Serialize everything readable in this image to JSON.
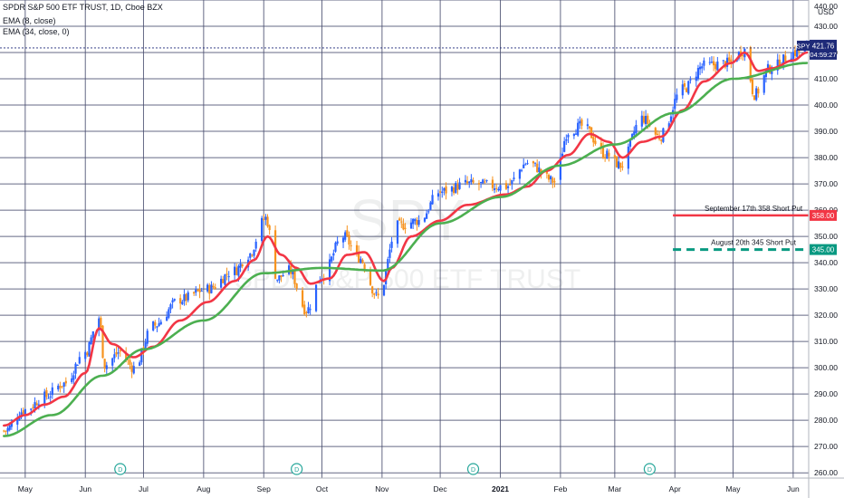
{
  "header": {
    "symbol_line": "SPDR S&P 500 ETF TRUST, 1D, Cboe BZX",
    "ema_fast_line": "EMA (8, close)",
    "ema_slow_line": "EMA (34, close, 0)"
  },
  "watermark": {
    "ticker": "SPY",
    "name": "SPDR S&P 500 ETF TRUST"
  },
  "axis": {
    "currency": "USD"
  },
  "price_tag": {
    "symbol": "SPY",
    "value": "421.76",
    "countdown": "04:59:27",
    "color": "#1e2a78"
  },
  "colors": {
    "up": "#2962ff",
    "down": "#f7931e",
    "ema_fast": "#f23645",
    "ema_slow": "#4caf50",
    "grid": "#4a4f70",
    "dividend_marker": "#26a69a"
  },
  "annotations": [
    {
      "label": "September 17th 358 Short Put",
      "price": 358,
      "tag": "358.00",
      "color": "#f23645",
      "style": "solid"
    },
    {
      "label": "August 20th 345 Short Put",
      "price": 345,
      "tag": "345.00",
      "color": "#089981",
      "style": "dashed"
    }
  ],
  "dividend_markers": [
    {
      "label": "D",
      "date": "2020-06-19"
    },
    {
      "label": "D",
      "date": "2020-09-18"
    },
    {
      "label": "D",
      "date": "2020-12-18"
    },
    {
      "label": "D",
      "date": "2021-03-19"
    }
  ],
  "chart_data": {
    "type": "candlestick",
    "title": "SPDR S&P 500 ETF TRUST, 1D, Cboe BZX",
    "x_tick_labels": [
      "May",
      "Jun",
      "Jul",
      "Aug",
      "Sep",
      "Oct",
      "Nov",
      "Dec",
      "2021",
      "Feb",
      "Mar",
      "Apr",
      "May",
      "Jun"
    ],
    "x_range": [
      "2020-04-18",
      "2021-06-09"
    ],
    "y_tick_labels": [
      "260.00",
      "270.00",
      "280.00",
      "290.00",
      "300.00",
      "310.00",
      "320.00",
      "330.00",
      "340.00",
      "350.00",
      "360.00",
      "370.00",
      "380.00",
      "390.00",
      "400.00",
      "410.00",
      "420.00",
      "430.00",
      "440.00"
    ],
    "ylim": [
      258,
      440
    ],
    "grid": true,
    "legend": "top-left",
    "series": [
      {
        "name": "SPY",
        "kind": "close",
        "x": [
          "2020-04-20",
          "2020-05-01",
          "2020-05-11",
          "2020-05-21",
          "2020-06-01",
          "2020-06-08",
          "2020-06-11",
          "2020-06-19",
          "2020-06-26",
          "2020-07-06",
          "2020-07-20",
          "2020-08-03",
          "2020-08-17",
          "2020-08-24",
          "2020-09-02",
          "2020-09-08",
          "2020-09-14",
          "2020-09-23",
          "2020-10-01",
          "2020-10-12",
          "2020-10-20",
          "2020-10-30",
          "2020-11-09",
          "2020-11-20",
          "2020-12-01",
          "2020-12-15",
          "2021-01-04",
          "2021-01-15",
          "2021-01-29",
          "2021-02-05",
          "2021-02-12",
          "2021-02-25",
          "2021-03-04",
          "2021-03-15",
          "2021-03-24",
          "2021-04-05",
          "2021-04-16",
          "2021-04-29",
          "2021-05-07",
          "2021-05-12",
          "2021-05-20",
          "2021-06-02",
          "2021-06-08"
        ],
        "values": [
          276,
          284,
          289,
          294,
          306,
          319,
          301,
          306,
          300,
          316,
          326,
          330,
          337,
          343,
          357,
          334,
          337,
          322,
          335,
          350,
          342,
          327,
          354,
          356,
          367,
          370,
          369,
          378,
          371,
          390,
          392,
          381,
          377,
          395,
          388,
          406,
          415,
          416,
          421,
          404,
          414,
          420,
          421.76
        ]
      },
      {
        "name": "EMA (8, close)",
        "x": [
          "2020-04-20",
          "2020-05-01",
          "2020-05-11",
          "2020-05-21",
          "2020-06-01",
          "2020-06-08",
          "2020-06-15",
          "2020-06-26",
          "2020-07-06",
          "2020-07-20",
          "2020-08-03",
          "2020-08-17",
          "2020-08-27",
          "2020-09-03",
          "2020-09-10",
          "2020-09-18",
          "2020-09-25",
          "2020-10-05",
          "2020-10-14",
          "2020-10-23",
          "2020-11-02",
          "2020-11-06",
          "2020-11-16",
          "2020-12-01",
          "2020-12-15",
          "2021-01-04",
          "2021-01-15",
          "2021-01-25",
          "2021-02-05",
          "2021-02-16",
          "2021-02-26",
          "2021-03-05",
          "2021-03-15",
          "2021-03-25",
          "2021-04-05",
          "2021-04-16",
          "2021-04-30",
          "2021-05-07",
          "2021-05-14",
          "2021-05-21",
          "2021-06-01",
          "2021-06-08"
        ],
        "values": [
          278,
          282,
          286,
          289,
          298,
          315,
          309,
          304,
          308,
          318,
          325,
          333,
          341,
          350,
          343,
          338,
          332,
          334,
          343,
          344,
          333,
          338,
          350,
          356,
          362,
          366,
          369,
          375,
          381,
          389,
          386,
          380,
          386,
          388,
          398,
          409,
          416,
          420,
          413,
          414,
          417,
          420
        ]
      },
      {
        "name": "EMA (34, close, 0)",
        "x": [
          "2020-04-20",
          "2020-05-15",
          "2020-06-10",
          "2020-07-01",
          "2020-08-01",
          "2020-09-01",
          "2020-10-01",
          "2020-11-01",
          "2020-12-01",
          "2021-01-01",
          "2021-02-01",
          "2021-03-01",
          "2021-04-01",
          "2021-05-01",
          "2021-06-08"
        ],
        "values": [
          274,
          282,
          297,
          307,
          318,
          336,
          338,
          337,
          355,
          365,
          377,
          385,
          397,
          410,
          416
        ]
      }
    ]
  }
}
